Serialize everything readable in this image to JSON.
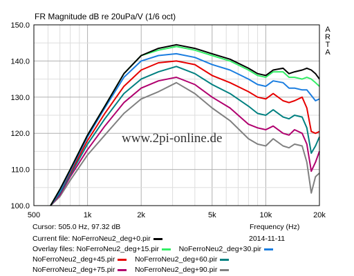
{
  "chart_data": {
    "type": "line",
    "title": "FR Magnitude dB re 20uPa/V (1/6 oct)",
    "brand_letters": [
      "A",
      "R",
      "T",
      "A"
    ],
    "watermark": "www.2pi-online.de",
    "xscale": "log",
    "xlim": [
      500,
      20000
    ],
    "ylim": [
      100,
      150
    ],
    "xlabel": "Frequency (Hz)",
    "grid": true,
    "x_ticks": [
      {
        "value": 500,
        "label": "500"
      },
      {
        "value": 1000,
        "label": "1k"
      },
      {
        "value": 2000,
        "label": "2k"
      },
      {
        "value": 5000,
        "label": "5k"
      },
      {
        "value": 10000,
        "label": "10k"
      },
      {
        "value": 20000,
        "label": "20k"
      }
    ],
    "y_ticks": [
      {
        "value": 150,
        "label": "150.0"
      },
      {
        "value": 140,
        "label": "140.0"
      },
      {
        "value": 130,
        "label": "130.0"
      },
      {
        "value": 120,
        "label": "120.0"
      },
      {
        "value": 110,
        "label": "110.0"
      },
      {
        "value": 100,
        "label": "100.0"
      }
    ],
    "x": [
      620,
      700,
      800,
      1000,
      1250,
      1600,
      2000,
      2500,
      3150,
      4000,
      5000,
      6300,
      8000,
      9000,
      10000,
      11000,
      12500,
      13500,
      14500,
      16000,
      17000,
      18000,
      19000,
      20000
    ],
    "series": [
      {
        "name": "NoFerroNeu2_deg+0.pir",
        "color": "#000000",
        "values": [
          100.0,
          104.5,
          110.0,
          119.5,
          127.5,
          136.5,
          141.5,
          143.5,
          144.5,
          143.5,
          142.0,
          140.5,
          138.0,
          136.5,
          136.0,
          137.5,
          138.0,
          136.5,
          137.0,
          137.5,
          138.0,
          137.5,
          136.5,
          135.0
        ]
      },
      {
        "name": "NoFerroNeu2_deg+15.pir",
        "color": "#33ee66",
        "values": [
          100.0,
          104.5,
          110.0,
          119.5,
          127.5,
          136.5,
          141.5,
          143.0,
          144.0,
          143.0,
          141.5,
          140.0,
          137.5,
          136.0,
          135.5,
          137.0,
          137.0,
          135.5,
          135.5,
          135.0,
          135.5,
          135.0,
          134.0,
          133.0
        ]
      },
      {
        "name": "NoFerroNeu2_deg+30.pir",
        "color": "#1a7de0",
        "values": [
          100.0,
          104.0,
          109.5,
          119.0,
          127.0,
          135.5,
          140.0,
          141.5,
          142.0,
          141.0,
          139.0,
          137.5,
          135.0,
          133.5,
          133.0,
          134.5,
          134.0,
          132.5,
          132.5,
          132.0,
          132.0,
          130.5,
          129.0,
          129.5
        ]
      },
      {
        "name": "NoFerroNeu2_deg+45.pir",
        "color": "#e60000",
        "values": [
          100.0,
          104.0,
          109.0,
          118.0,
          125.5,
          133.0,
          137.5,
          139.5,
          140.0,
          139.0,
          136.0,
          134.0,
          131.5,
          130.0,
          129.5,
          131.0,
          129.0,
          128.5,
          129.0,
          130.0,
          127.0,
          120.5,
          120.0,
          120.5
        ]
      },
      {
        "name": "NoFerroNeu2_deg+60.pir",
        "color": "#008080",
        "values": [
          100.0,
          103.5,
          108.5,
          117.0,
          124.0,
          131.0,
          135.0,
          137.0,
          138.5,
          136.5,
          133.5,
          131.0,
          127.5,
          125.5,
          125.0,
          126.5,
          124.5,
          124.0,
          125.0,
          124.5,
          121.5,
          114.5,
          116.5,
          119.0
        ]
      },
      {
        "name": "NoFerroNeu2_deg+75.pir",
        "color": "#b0006e",
        "values": [
          100.0,
          103.0,
          108.0,
          115.5,
          122.0,
          128.5,
          132.5,
          134.5,
          135.5,
          133.5,
          130.0,
          127.0,
          122.5,
          121.5,
          121.0,
          122.0,
          120.0,
          119.5,
          121.0,
          120.0,
          117.0,
          109.5,
          112.0,
          115.0
        ]
      },
      {
        "name": "NoFerroNeu2_deg+90.pir",
        "color": "#808080",
        "values": [
          100.0,
          102.5,
          107.0,
          114.0,
          119.5,
          125.5,
          129.5,
          131.5,
          134.0,
          131.0,
          127.0,
          123.5,
          118.5,
          117.0,
          116.5,
          118.5,
          116.5,
          116.0,
          117.0,
          116.5,
          112.0,
          103.5,
          108.0,
          109.0
        ]
      }
    ]
  },
  "cursor": {
    "label": "Cursor:",
    "value": "505.0 Hz, 97.32 dB"
  },
  "current_file": {
    "label": "Current file:",
    "name": "NoFerroNeu2_deg+0.pir"
  },
  "date": "2014-11-11",
  "overlay": {
    "label": "Overlay files:"
  }
}
